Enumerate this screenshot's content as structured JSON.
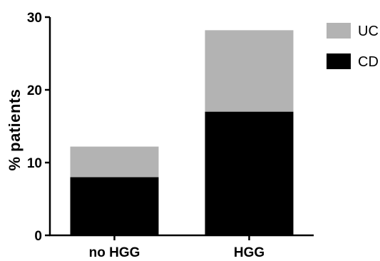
{
  "chart_data": {
    "type": "bar",
    "stacked": true,
    "categories": [
      "no HGG",
      "HGG"
    ],
    "series": [
      {
        "name": "CD",
        "values": [
          8,
          17
        ],
        "color": "#000000"
      },
      {
        "name": "UC",
        "values": [
          4.2,
          11.2
        ],
        "color": "#b3b3b3"
      }
    ],
    "ylabel": "% patients",
    "xlabel": "",
    "ylim": [
      0,
      30
    ],
    "yticks": [
      0,
      10,
      20,
      30
    ],
    "legend": {
      "placement": "top-right",
      "order": [
        "UC",
        "CD"
      ]
    },
    "grid": false
  }
}
